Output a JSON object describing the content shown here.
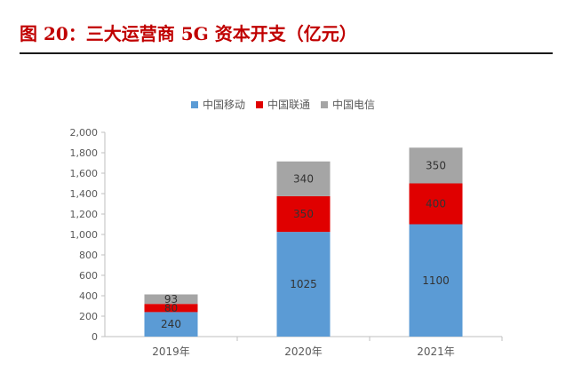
{
  "figure_title": "图 20：三大运营商 5G 资本开支（亿元）",
  "chart_data": {
    "type": "bar",
    "stacked": true,
    "categories": [
      "2019年",
      "2020年",
      "2021年"
    ],
    "series": [
      {
        "name": "中国移动",
        "color": "#5b9bd5",
        "values": [
          240,
          1025,
          1100
        ],
        "labels": [
          "240",
          "1025",
          "1100"
        ]
      },
      {
        "name": "中国联通",
        "color": "#e00000",
        "values": [
          80,
          350,
          400
        ],
        "labels": [
          "80",
          "350",
          "400"
        ]
      },
      {
        "name": "中国电信",
        "color": "#a5a5a5",
        "values": [
          93,
          340,
          350
        ],
        "labels": [
          "93",
          "340",
          "350"
        ]
      }
    ],
    "ylim": [
      0,
      2000
    ],
    "yticks": [
      "0",
      "200",
      "400",
      "600",
      "800",
      "1,000",
      "1,200",
      "1,400",
      "1,600",
      "1,800",
      "2,000"
    ],
    "legend_position": "top-center",
    "grid": false
  }
}
